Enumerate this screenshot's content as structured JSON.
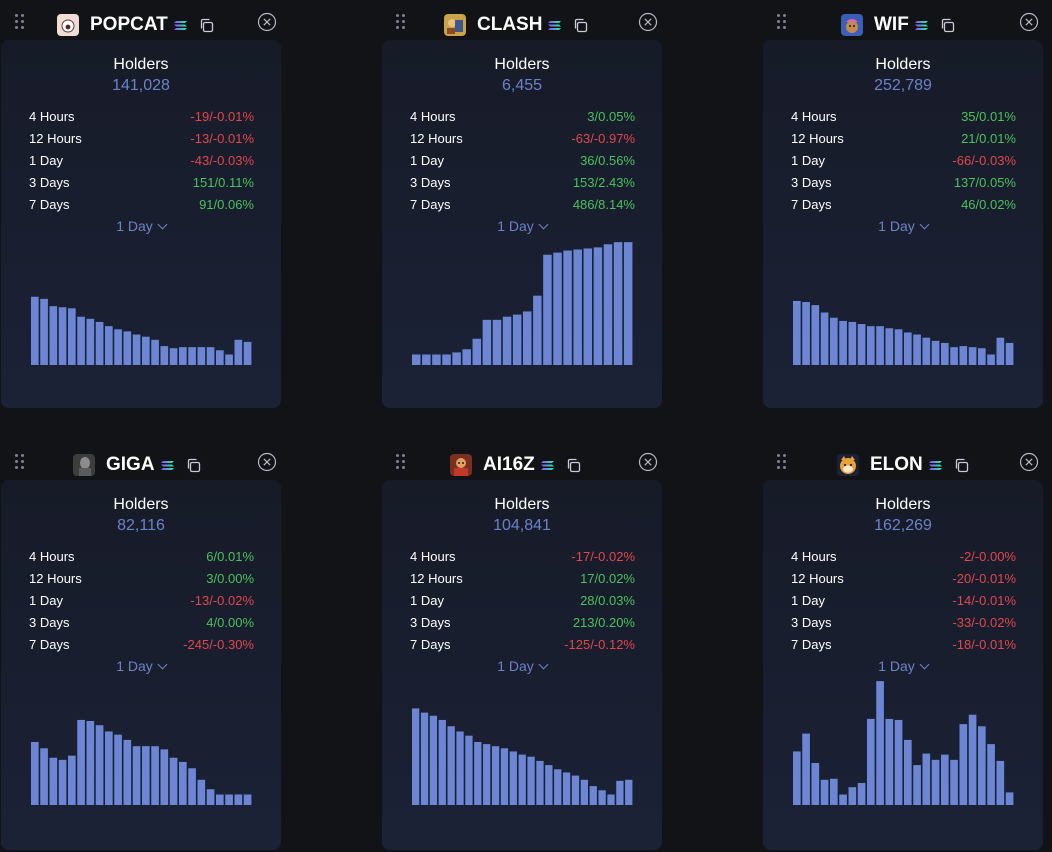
{
  "labels": {
    "holders": "Holders",
    "periods": [
      "4 Hours",
      "12 Hours",
      "1 Day",
      "3 Days",
      "7 Days"
    ]
  },
  "colors": {
    "accent": "#6b82c8",
    "positive": "#4cc05c",
    "negative": "#e0474c",
    "bar": "#6c86d4"
  },
  "cards": [
    {
      "ticker": "POPCAT",
      "avatar_icon": "popcat-avatar-icon",
      "holders": "141,028",
      "period_select": "1 Day",
      "stats": [
        {
          "value": "-19/-0.01%",
          "dir": "neg"
        },
        {
          "value": "-13/-0.01%",
          "dir": "neg"
        },
        {
          "value": "-43/-0.03%",
          "dir": "neg"
        },
        {
          "value": "151/0.11%",
          "dir": "pos"
        },
        {
          "value": "91/0.06%",
          "dir": "pos"
        }
      ],
      "chart_data": {
        "type": "bar",
        "bars": [
          65,
          63,
          56,
          55,
          54,
          46,
          44,
          41,
          37,
          34,
          32,
          29,
          27,
          24,
          18,
          16,
          17,
          17,
          17,
          17,
          14,
          10,
          24,
          22
        ]
      }
    },
    {
      "ticker": "CLASH",
      "avatar_icon": "clash-avatar-icon",
      "holders": "6,455",
      "period_select": "1 Day",
      "stats": [
        {
          "value": "3/0.05%",
          "dir": "pos"
        },
        {
          "value": "-63/-0.97%",
          "dir": "neg"
        },
        {
          "value": "36/0.56%",
          "dir": "pos"
        },
        {
          "value": "153/2.43%",
          "dir": "pos"
        },
        {
          "value": "486/8.14%",
          "dir": "pos"
        }
      ],
      "chart_data": {
        "type": "bar",
        "bars": [
          10,
          10,
          10,
          10,
          12,
          15,
          25,
          43,
          43,
          46,
          48,
          51,
          66,
          105,
          107,
          109,
          110,
          111,
          112,
          115,
          117,
          117
        ]
      }
    },
    {
      "ticker": "WIF",
      "avatar_icon": "wif-avatar-icon",
      "holders": "252,789",
      "period_select": "1 Day",
      "stats": [
        {
          "value": "35/0.01%",
          "dir": "pos"
        },
        {
          "value": "21/0.01%",
          "dir": "pos"
        },
        {
          "value": "-66/-0.03%",
          "dir": "neg"
        },
        {
          "value": "137/0.05%",
          "dir": "pos"
        },
        {
          "value": "46/0.02%",
          "dir": "pos"
        }
      ],
      "chart_data": {
        "type": "bar",
        "bars": [
          61,
          60,
          57,
          50,
          45,
          42,
          41,
          39,
          37,
          37,
          35,
          34,
          31,
          29,
          26,
          23,
          21,
          17,
          18,
          17,
          16,
          10,
          26,
          21
        ]
      }
    },
    {
      "ticker": "GIGA",
      "avatar_icon": "giga-avatar-icon",
      "holders": "82,116",
      "period_select": "1 Day",
      "stats": [
        {
          "value": "6/0.01%",
          "dir": "pos"
        },
        {
          "value": "3/0.00%",
          "dir": "pos"
        },
        {
          "value": "-13/-0.02%",
          "dir": "neg"
        },
        {
          "value": "4/0.00%",
          "dir": "pos"
        },
        {
          "value": "-245/-0.30%",
          "dir": "neg"
        }
      ],
      "chart_data": {
        "type": "bar",
        "bars": [
          60,
          54,
          45,
          43,
          47,
          81,
          80,
          76,
          70,
          67,
          62,
          56,
          56,
          56,
          53,
          45,
          41,
          35,
          24,
          15,
          10,
          10,
          10,
          10
        ]
      }
    },
    {
      "ticker": "AI16Z",
      "avatar_icon": "ai16z-avatar-icon",
      "holders": "104,841",
      "period_select": "1 Day",
      "stats": [
        {
          "value": "-17/-0.02%",
          "dir": "neg"
        },
        {
          "value": "17/0.02%",
          "dir": "pos"
        },
        {
          "value": "28/0.03%",
          "dir": "pos"
        },
        {
          "value": "213/0.20%",
          "dir": "pos"
        },
        {
          "value": "-125/-0.12%",
          "dir": "neg"
        }
      ],
      "chart_data": {
        "type": "bar",
        "bars": [
          92,
          88,
          85,
          81,
          75,
          70,
          66,
          60,
          58,
          56,
          54,
          51,
          48,
          46,
          42,
          38,
          34,
          31,
          28,
          24,
          18,
          14,
          10,
          23,
          24
        ]
      }
    },
    {
      "ticker": "ELON",
      "avatar_icon": "elon-avatar-icon",
      "holders": "162,269",
      "period_select": "1 Day",
      "stats": [
        {
          "value": "-2/-0.00%",
          "dir": "neg"
        },
        {
          "value": "-20/-0.01%",
          "dir": "neg"
        },
        {
          "value": "-14/-0.01%",
          "dir": "neg"
        },
        {
          "value": "-33/-0.02%",
          "dir": "neg"
        },
        {
          "value": "-18/-0.01%",
          "dir": "neg"
        }
      ],
      "chart_data": {
        "type": "bar",
        "bars": [
          51,
          68,
          40,
          24,
          25,
          10,
          17,
          21,
          82,
          118,
          82,
          81,
          62,
          38,
          49,
          43,
          48,
          43,
          77,
          86,
          75,
          58,
          42,
          12
        ]
      }
    }
  ]
}
